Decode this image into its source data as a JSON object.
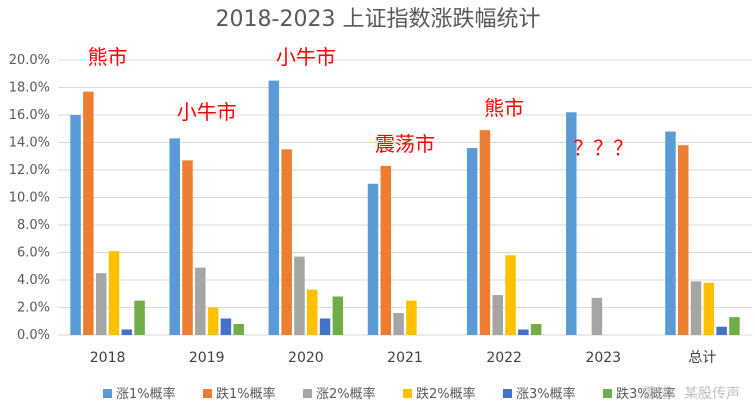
{
  "chart_data": {
    "type": "bar",
    "title": "2018-2023 上证指数涨跌幅统计",
    "categories": [
      "2018",
      "2019",
      "2020",
      "2021",
      "2022",
      "2023",
      "总计"
    ],
    "ylim": [
      0,
      0.2
    ],
    "ytick_labels": [
      "0.0%",
      "2.0%",
      "4.0%",
      "6.0%",
      "8.0%",
      "10.0%",
      "12.0%",
      "14.0%",
      "16.0%",
      "18.0%",
      "20.0%"
    ],
    "grid": true,
    "legend_position": "bottom",
    "series": [
      {
        "name": "涨1%概率",
        "color": "#5b9bd5",
        "values": [
          0.16,
          0.143,
          0.185,
          0.11,
          0.136,
          0.162,
          0.148
        ]
      },
      {
        "name": "跌1%概率",
        "color": "#ed7d31",
        "values": [
          0.177,
          0.127,
          0.135,
          0.123,
          0.149,
          null,
          0.138
        ]
      },
      {
        "name": "涨2%概率",
        "color": "#a5a5a5",
        "values": [
          0.045,
          0.049,
          0.057,
          0.016,
          0.029,
          0.027,
          0.039
        ]
      },
      {
        "name": "跌2%概率",
        "color": "#ffc000",
        "values": [
          0.061,
          0.02,
          0.033,
          0.025,
          0.058,
          null,
          0.038
        ]
      },
      {
        "name": "涨3%概率",
        "color": "#4472c4",
        "values": [
          0.004,
          0.012,
          0.012,
          null,
          0.004,
          null,
          0.006
        ]
      },
      {
        "name": "跌3%概率",
        "color": "#70ad47",
        "values": [
          0.025,
          0.008,
          0.028,
          null,
          0.008,
          null,
          0.013
        ]
      }
    ],
    "annotations": [
      {
        "text": "熊市",
        "category": "2018",
        "level": 0.197
      },
      {
        "text": "小牛市",
        "category": "2019",
        "level": 0.157
      },
      {
        "text": "小牛市",
        "category": "2020",
        "level": 0.197
      },
      {
        "text": "震荡市",
        "category": "2021",
        "level": 0.134
      },
      {
        "text": "熊市",
        "category": "2022",
        "level": 0.16
      },
      {
        "text": "？？？",
        "category": "2023",
        "level": 0.131
      }
    ]
  },
  "watermark": "雪球：某股传声"
}
